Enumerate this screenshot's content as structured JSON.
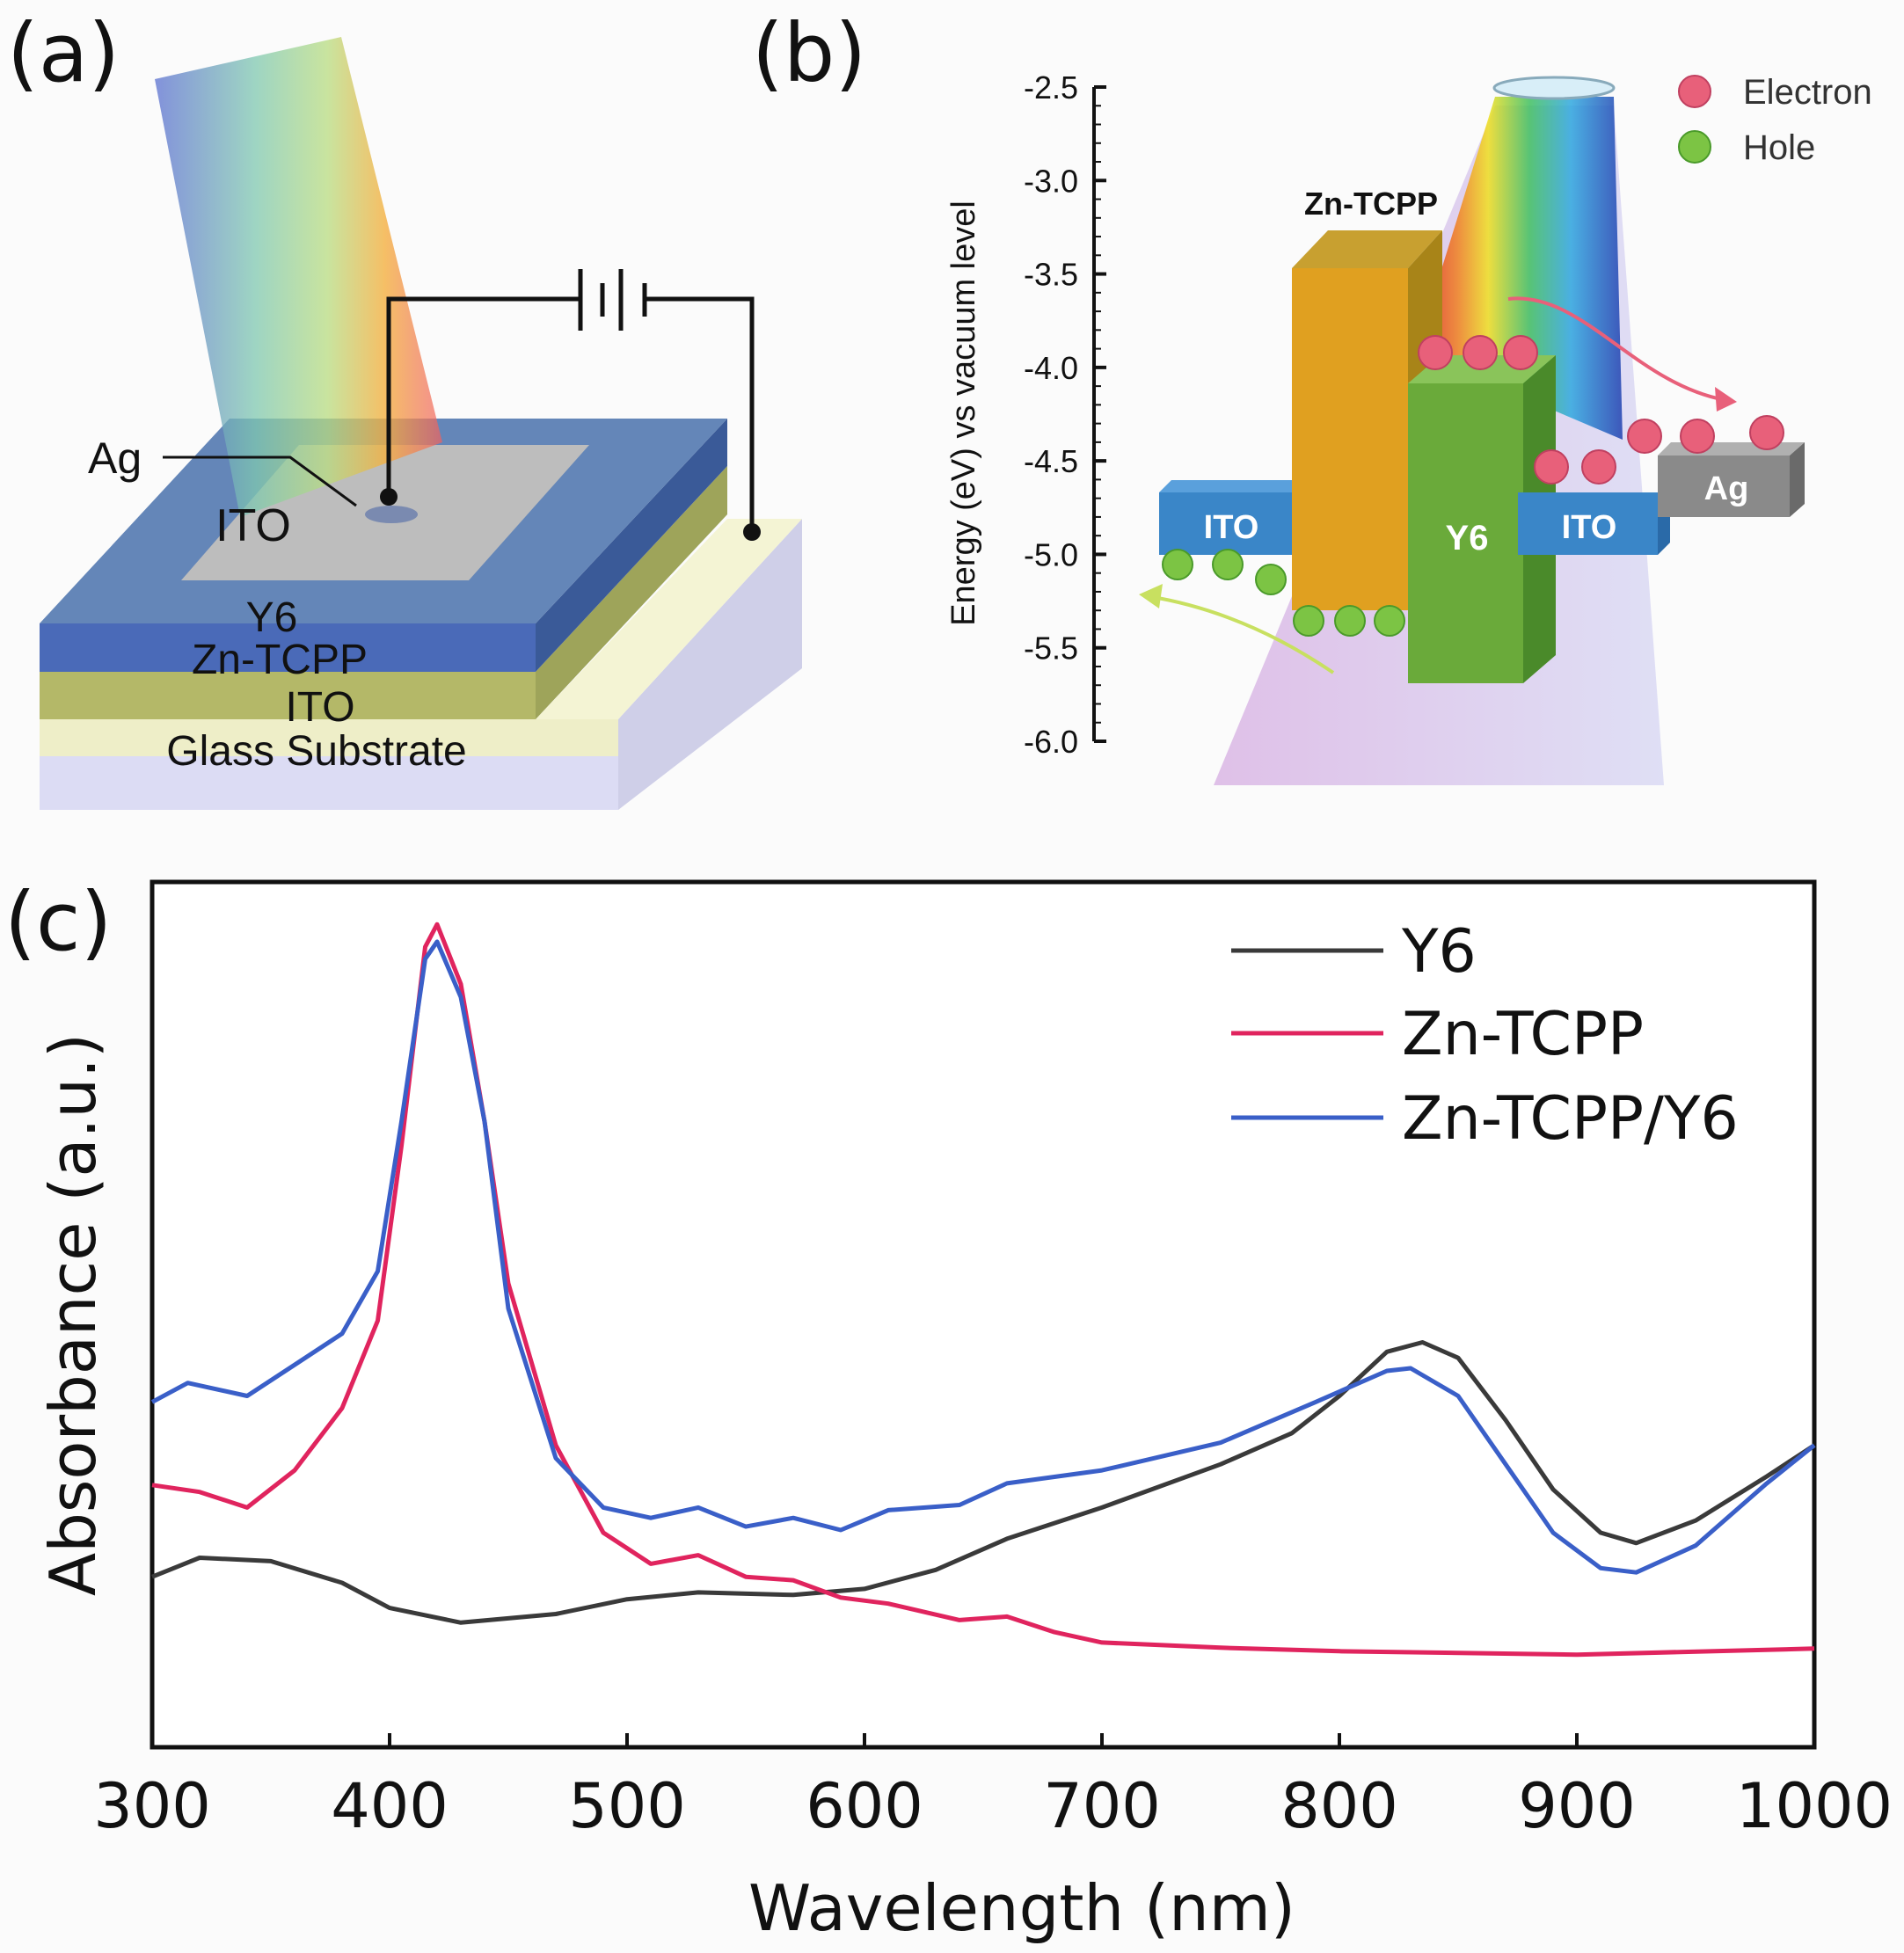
{
  "panel_a": {
    "label": "(a)",
    "ag_label": "Ag",
    "layers": {
      "top_electrode": "ITO",
      "y6": "Y6",
      "zn_tcpp": "Zn-TCPP",
      "ito": "ITO",
      "glass": "Glass Substrate"
    }
  },
  "panel_b": {
    "label": "(b)",
    "axis_title": "Energy (eV) vs vacuum level",
    "ticks": [
      "-2.5",
      "-3.0",
      "-3.5",
      "-4.0",
      "-4.5",
      "-5.0",
      "-5.5",
      "-6.0"
    ],
    "ylim": [
      -6.0,
      -2.5
    ],
    "blocks": {
      "zn_tcpp": "Zn-TCPP",
      "y6": "Y6",
      "ito_left": "ITO",
      "ito_right": "ITO",
      "ag": "Ag"
    },
    "legend": {
      "electron": "Electron",
      "hole": "Hole"
    },
    "colors": {
      "electron": "#e8607a",
      "hole": "#7cc444",
      "zn_tcpp": "#e0a020",
      "y6": "#6aaa3a",
      "ito": "#3a86c8",
      "ag": "#8a8a8a"
    }
  },
  "chart_data": {
    "panel_label": "(c)",
    "type": "line",
    "xlabel": "Wavelength (nm)",
    "ylabel": "Absorbance (a.u.)",
    "xlim": [
      300,
      1000
    ],
    "ylim": [
      0,
      1
    ],
    "xticks": [
      "300",
      "400",
      "500",
      "600",
      "700",
      "800",
      "900",
      "1000"
    ],
    "legend_position": "top-right",
    "grid": false,
    "series": [
      {
        "name": "Y6",
        "color": "#3a3a3a",
        "x": [
          300,
          320,
          350,
          380,
          400,
          430,
          470,
          500,
          530,
          570,
          600,
          630,
          660,
          700,
          750,
          780,
          800,
          820,
          835,
          850,
          870,
          890,
          910,
          925,
          950,
          980,
          1000
        ],
        "y": [
          0.197,
          0.219,
          0.215,
          0.19,
          0.161,
          0.144,
          0.154,
          0.171,
          0.179,
          0.176,
          0.183,
          0.205,
          0.241,
          0.277,
          0.327,
          0.363,
          0.406,
          0.457,
          0.468,
          0.45,
          0.378,
          0.298,
          0.248,
          0.236,
          0.262,
          0.313,
          0.349
        ]
      },
      {
        "name": "Zn-TCPP",
        "color": "#e0245e",
        "x": [
          300,
          320,
          340,
          360,
          380,
          395,
          405,
          415,
          420,
          430,
          440,
          450,
          470,
          490,
          510,
          530,
          550,
          570,
          590,
          610,
          640,
          660,
          680,
          700,
          750,
          800,
          900,
          1000
        ],
        "y": [
          0.303,
          0.295,
          0.277,
          0.32,
          0.392,
          0.493,
          0.695,
          0.925,
          0.951,
          0.882,
          0.723,
          0.536,
          0.349,
          0.248,
          0.212,
          0.222,
          0.197,
          0.193,
          0.173,
          0.166,
          0.147,
          0.151,
          0.133,
          0.121,
          0.115,
          0.111,
          0.107,
          0.114
        ]
      },
      {
        "name": "Zn-TCPP/Y6",
        "color": "#3a5fc8",
        "x": [
          300,
          315,
          340,
          360,
          380,
          395,
          405,
          415,
          420,
          430,
          440,
          450,
          470,
          490,
          510,
          530,
          550,
          570,
          590,
          610,
          640,
          660,
          700,
          750,
          790,
          820,
          830,
          850,
          870,
          890,
          910,
          925,
          950,
          980,
          1000
        ],
        "y": [
          0.399,
          0.421,
          0.406,
          0.442,
          0.478,
          0.55,
          0.723,
          0.911,
          0.931,
          0.867,
          0.723,
          0.507,
          0.334,
          0.277,
          0.265,
          0.277,
          0.255,
          0.265,
          0.251,
          0.274,
          0.28,
          0.305,
          0.32,
          0.352,
          0.399,
          0.435,
          0.438,
          0.406,
          0.327,
          0.248,
          0.207,
          0.202,
          0.233,
          0.305,
          0.349
        ]
      }
    ]
  }
}
